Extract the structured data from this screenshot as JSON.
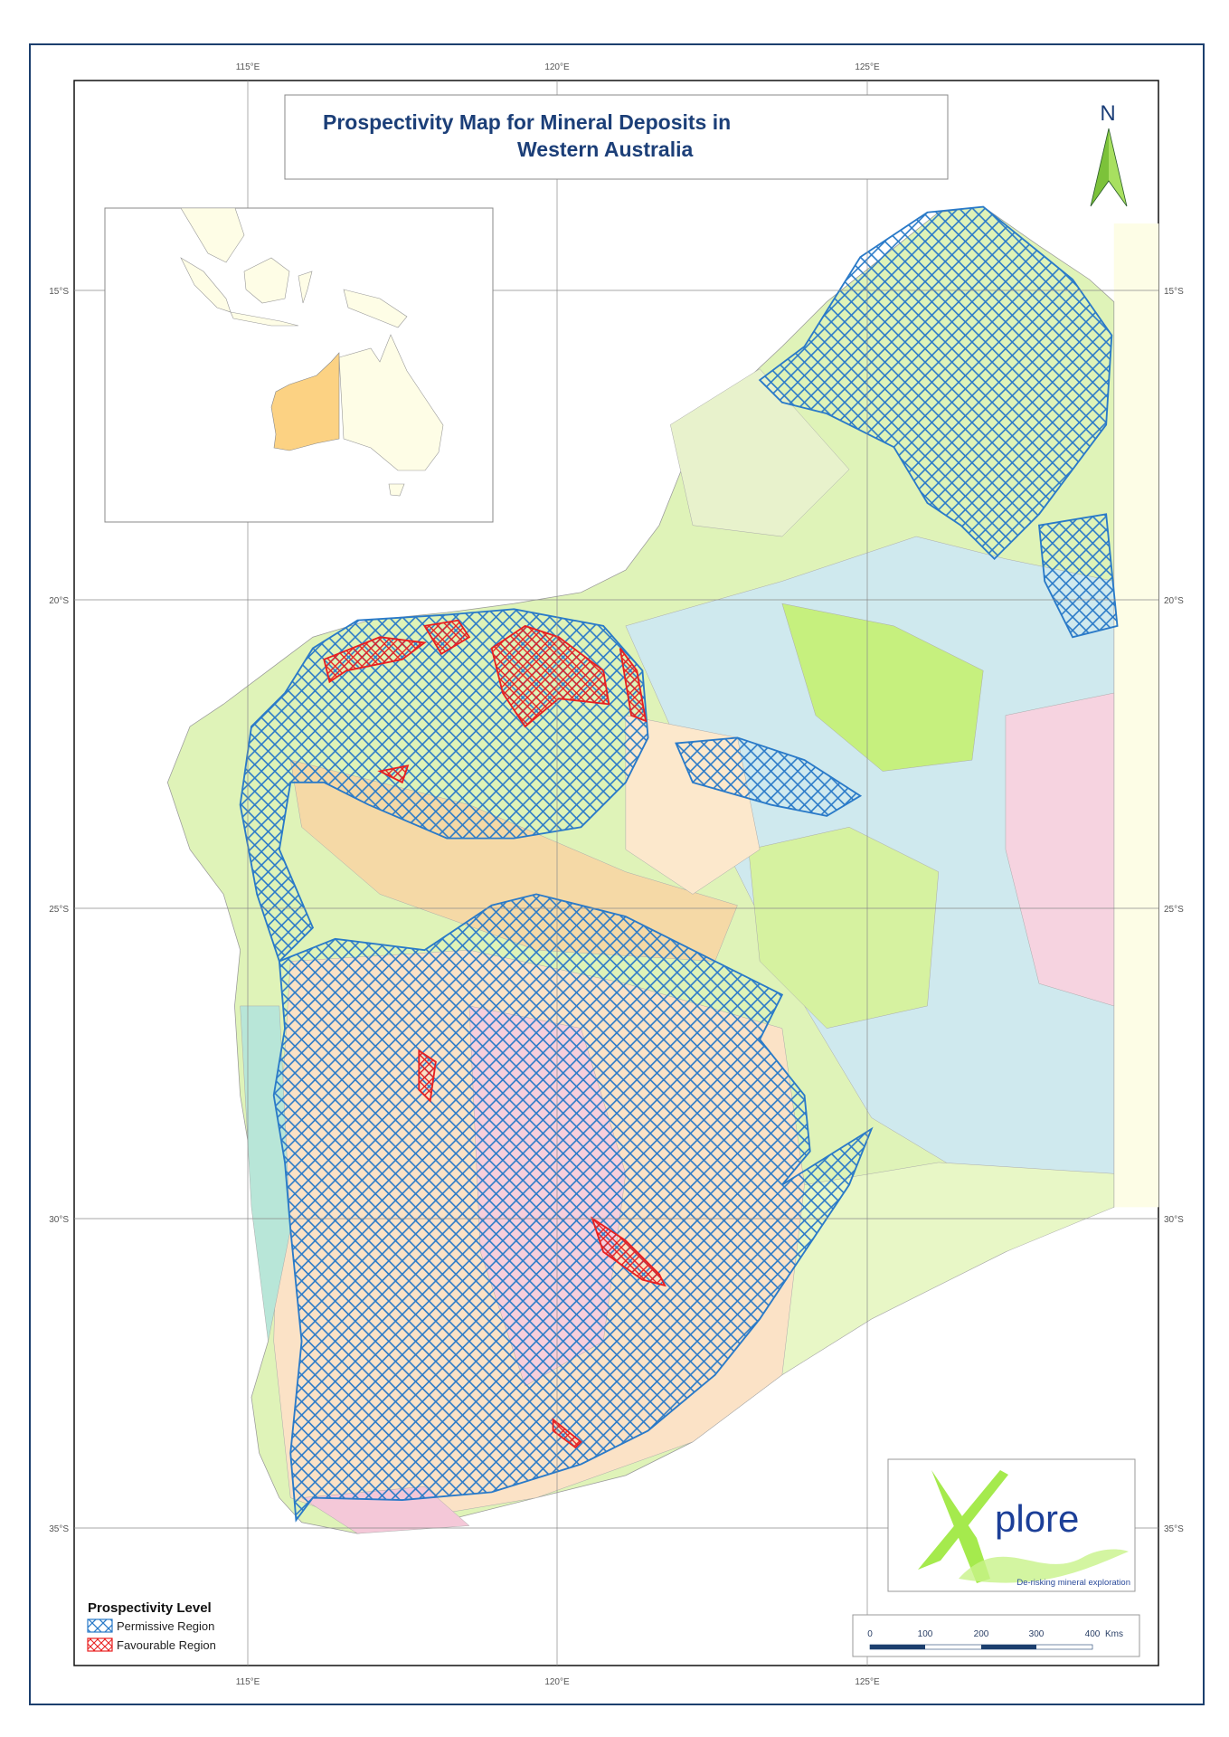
{
  "title": {
    "line1": "Prospectivity Map for Mineral Deposits in",
    "line2": "Western Australia"
  },
  "north_arrow": {
    "label": "N",
    "color": "#8cd24a"
  },
  "graticule": {
    "longitudes": [
      "115°E",
      "120°E",
      "125°E"
    ],
    "latitudes": [
      "15°S",
      "20°S",
      "25°S",
      "30°S",
      "35°S"
    ]
  },
  "legend": {
    "title": "Prospectivity Level",
    "items": [
      {
        "label": "Permissive Region",
        "color": "#2a7ac8",
        "pattern": "crosshatch"
      },
      {
        "label": "Favourable Region",
        "color": "#e82020",
        "pattern": "crosshatch"
      }
    ]
  },
  "scale_bar": {
    "labels": [
      "0",
      "100",
      "200",
      "300",
      "400"
    ],
    "unit": "Kms",
    "color": "#1c3f6e"
  },
  "logo": {
    "text": "plore",
    "tagline": "De-risking mineral exploration",
    "brand_color": "#1c3f98",
    "accent_color": "#9be83a"
  },
  "inset": {
    "highlight_region": "Western Australia",
    "highlight_color": "#fcd283",
    "land_color": "#fefde6"
  },
  "colors": {
    "frame": "#1c3f6e",
    "permissive": "#2a7ac8",
    "favourable": "#e82020"
  }
}
